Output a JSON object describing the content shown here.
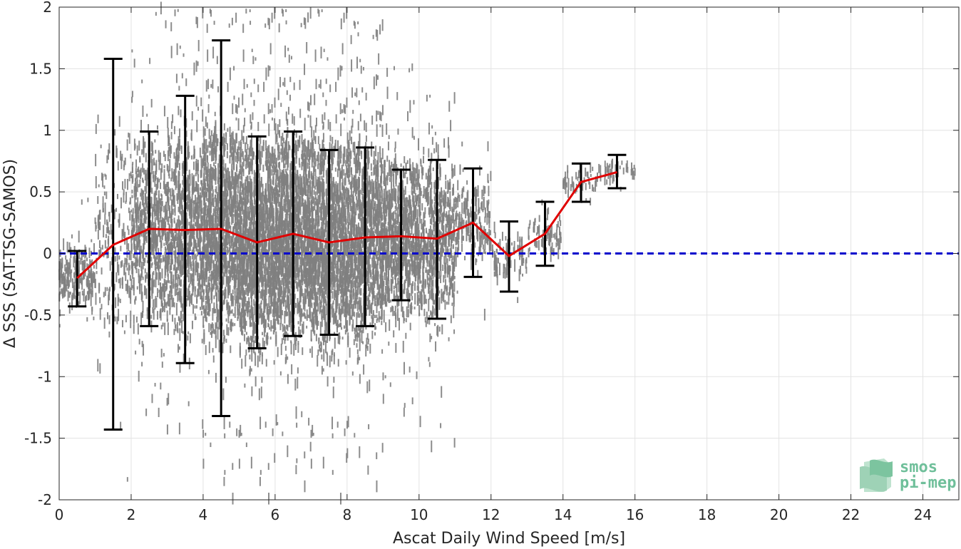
{
  "chart_data": {
    "type": "scatter",
    "xlabel": "Ascat Daily Wind Speed [m/s]",
    "ylabel": "Δ SSS (SAT-TSG-SAMOS)",
    "xlim": [
      0,
      25
    ],
    "ylim": [
      -2,
      2
    ],
    "x_ticks": [
      0,
      2,
      4,
      6,
      8,
      10,
      12,
      14,
      16,
      18,
      20,
      22,
      24
    ],
    "y_ticks": [
      2,
      1.5,
      1,
      0.5,
      0,
      -0.5,
      -1,
      -1.5,
      -2
    ],
    "grid": true,
    "colors": {
      "scatter": "#808080",
      "mean_line": "#e00000",
      "errorbar": "#000000",
      "zero_line": "#0000cc"
    },
    "scatter_bins": [
      {
        "x": 0.5,
        "lo": -0.6,
        "hi": 0.5,
        "density": 0.15
      },
      {
        "x": 1.5,
        "lo": -1.9,
        "hi": 1.9,
        "density": 0.15
      },
      {
        "x": 2.5,
        "lo": -1.3,
        "hi": 2.0,
        "density": 0.45
      },
      {
        "x": 3.5,
        "lo": -1.7,
        "hi": 2.0,
        "density": 0.6
      },
      {
        "x": 4.5,
        "lo": -2.0,
        "hi": 2.0,
        "density": 0.85
      },
      {
        "x": 5.5,
        "lo": -2.0,
        "hi": 2.0,
        "density": 1.0
      },
      {
        "x": 6.5,
        "lo": -1.9,
        "hi": 2.0,
        "density": 1.0
      },
      {
        "x": 7.5,
        "lo": -2.0,
        "hi": 2.0,
        "density": 0.95
      },
      {
        "x": 8.5,
        "lo": -1.9,
        "hi": 1.9,
        "density": 0.85
      },
      {
        "x": 9.5,
        "lo": -1.4,
        "hi": 1.6,
        "density": 0.6
      },
      {
        "x": 10.5,
        "lo": -1.8,
        "hi": 1.3,
        "density": 0.45
      },
      {
        "x": 11.5,
        "lo": -0.5,
        "hi": 0.9,
        "density": 0.15
      },
      {
        "x": 12.5,
        "lo": -0.5,
        "hi": 0.3,
        "density": 0.06
      },
      {
        "x": 13.5,
        "lo": -0.4,
        "hi": 0.5,
        "density": 0.05
      },
      {
        "x": 14.5,
        "lo": 0.3,
        "hi": 0.95,
        "density": 0.04
      },
      {
        "x": 15.5,
        "lo": 0.5,
        "hi": 0.9,
        "density": 0.03
      }
    ],
    "mean_series": {
      "x": [
        0.5,
        1.5,
        2.5,
        3.5,
        4.5,
        5.5,
        6.5,
        7.5,
        8.5,
        9.5,
        10.5,
        11.5,
        12.5,
        13.5,
        14.5,
        15.5
      ],
      "y": [
        -0.2,
        0.07,
        0.2,
        0.19,
        0.2,
        0.09,
        0.16,
        0.09,
        0.13,
        0.14,
        0.12,
        0.25,
        -0.02,
        0.16,
        0.58,
        0.66
      ]
    },
    "errorbars": [
      {
        "x": 0.5,
        "lo": -0.43,
        "hi": 0.02
      },
      {
        "x": 1.5,
        "lo": -1.43,
        "hi": 1.58
      },
      {
        "x": 2.5,
        "lo": -0.59,
        "hi": 0.99
      },
      {
        "x": 3.5,
        "lo": -0.89,
        "hi": 1.28
      },
      {
        "x": 4.5,
        "lo": -1.32,
        "hi": 1.73
      },
      {
        "x": 5.5,
        "lo": -0.77,
        "hi": 0.95
      },
      {
        "x": 6.5,
        "lo": -0.67,
        "hi": 0.99
      },
      {
        "x": 7.5,
        "lo": -0.66,
        "hi": 0.84
      },
      {
        "x": 8.5,
        "lo": -0.59,
        "hi": 0.86
      },
      {
        "x": 9.5,
        "lo": -0.38,
        "hi": 0.68
      },
      {
        "x": 10.5,
        "lo": -0.53,
        "hi": 0.76
      },
      {
        "x": 11.5,
        "lo": -0.19,
        "hi": 0.69
      },
      {
        "x": 12.5,
        "lo": -0.31,
        "hi": 0.26
      },
      {
        "x": 13.5,
        "lo": -0.1,
        "hi": 0.42
      },
      {
        "x": 14.5,
        "lo": 0.42,
        "hi": 0.73
      },
      {
        "x": 15.5,
        "lo": 0.53,
        "hi": 0.8
      }
    ],
    "reference_line_y": 0
  },
  "logo": {
    "line1": "smos",
    "line2": "pi-mep",
    "color": "#6fbf9a"
  }
}
